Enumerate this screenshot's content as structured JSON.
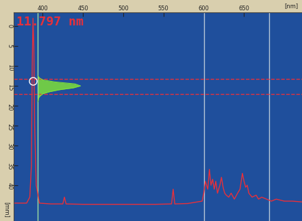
{
  "chart_data": {
    "type": "line",
    "annotation": "11.797 nm",
    "xlabel": "[nm]",
    "ylabel": "[mm]",
    "xlim": [
      364,
      722
    ],
    "ylim": [
      49,
      -3.5
    ],
    "xticks": [
      400,
      450,
      500,
      550,
      600,
      650
    ],
    "yticks": [
      0,
      5,
      10,
      15,
      20,
      25,
      30,
      35,
      40
    ],
    "grid": false,
    "color": "#e8303a",
    "x": [
      364,
      380,
      384,
      386,
      387,
      388,
      389,
      390,
      392,
      396,
      410,
      425,
      427,
      429,
      450,
      500,
      540,
      560,
      562,
      564,
      580,
      598,
      600,
      602,
      605,
      607,
      609,
      611,
      613,
      615,
      617,
      620,
      622,
      624,
      626,
      628,
      631,
      634,
      638,
      642,
      645,
      648,
      650,
      652,
      654,
      656,
      660,
      665,
      668,
      672,
      678,
      684,
      690,
      700,
      710,
      722
    ],
    "values": [
      44.5,
      44.5,
      43,
      35,
      10,
      -2,
      5,
      25,
      40,
      44.5,
      44.7,
      44.7,
      43,
      44.7,
      44.8,
      44.8,
      44.8,
      44.7,
      41,
      44.7,
      44.6,
      44,
      42,
      39,
      41,
      36,
      40,
      38.5,
      41,
      39,
      42,
      40,
      38,
      40.5,
      42,
      42.5,
      43,
      42,
      43.5,
      42,
      41,
      37,
      39,
      40.5,
      40,
      42,
      43,
      42.5,
      43.5,
      43,
      43.5,
      44,
      43.5,
      44,
      44,
      44.2
    ],
    "profile": {
      "color": "#7ee03a",
      "y": [
        12.5,
        13,
        13.5,
        14,
        14.5,
        15,
        15.5,
        16,
        16.5,
        17,
        17.5,
        18,
        19
      ],
      "x": [
        394,
        396,
        400,
        415,
        440,
        447,
        438,
        420,
        408,
        400,
        397,
        395,
        394
      ]
    },
    "hlines": {
      "color": "#e8303a",
      "line_style": "dashed",
      "values": [
        13.3,
        17.1
      ]
    },
    "vlines": {
      "colors": [
        "#9fe0a0",
        "#b8c8d8",
        "#b8c8d8"
      ],
      "values": [
        394,
        600,
        681
      ]
    },
    "marker_point": {
      "x": 388,
      "y": 13.8,
      "color": "#ffffff",
      "marker": "o"
    }
  }
}
